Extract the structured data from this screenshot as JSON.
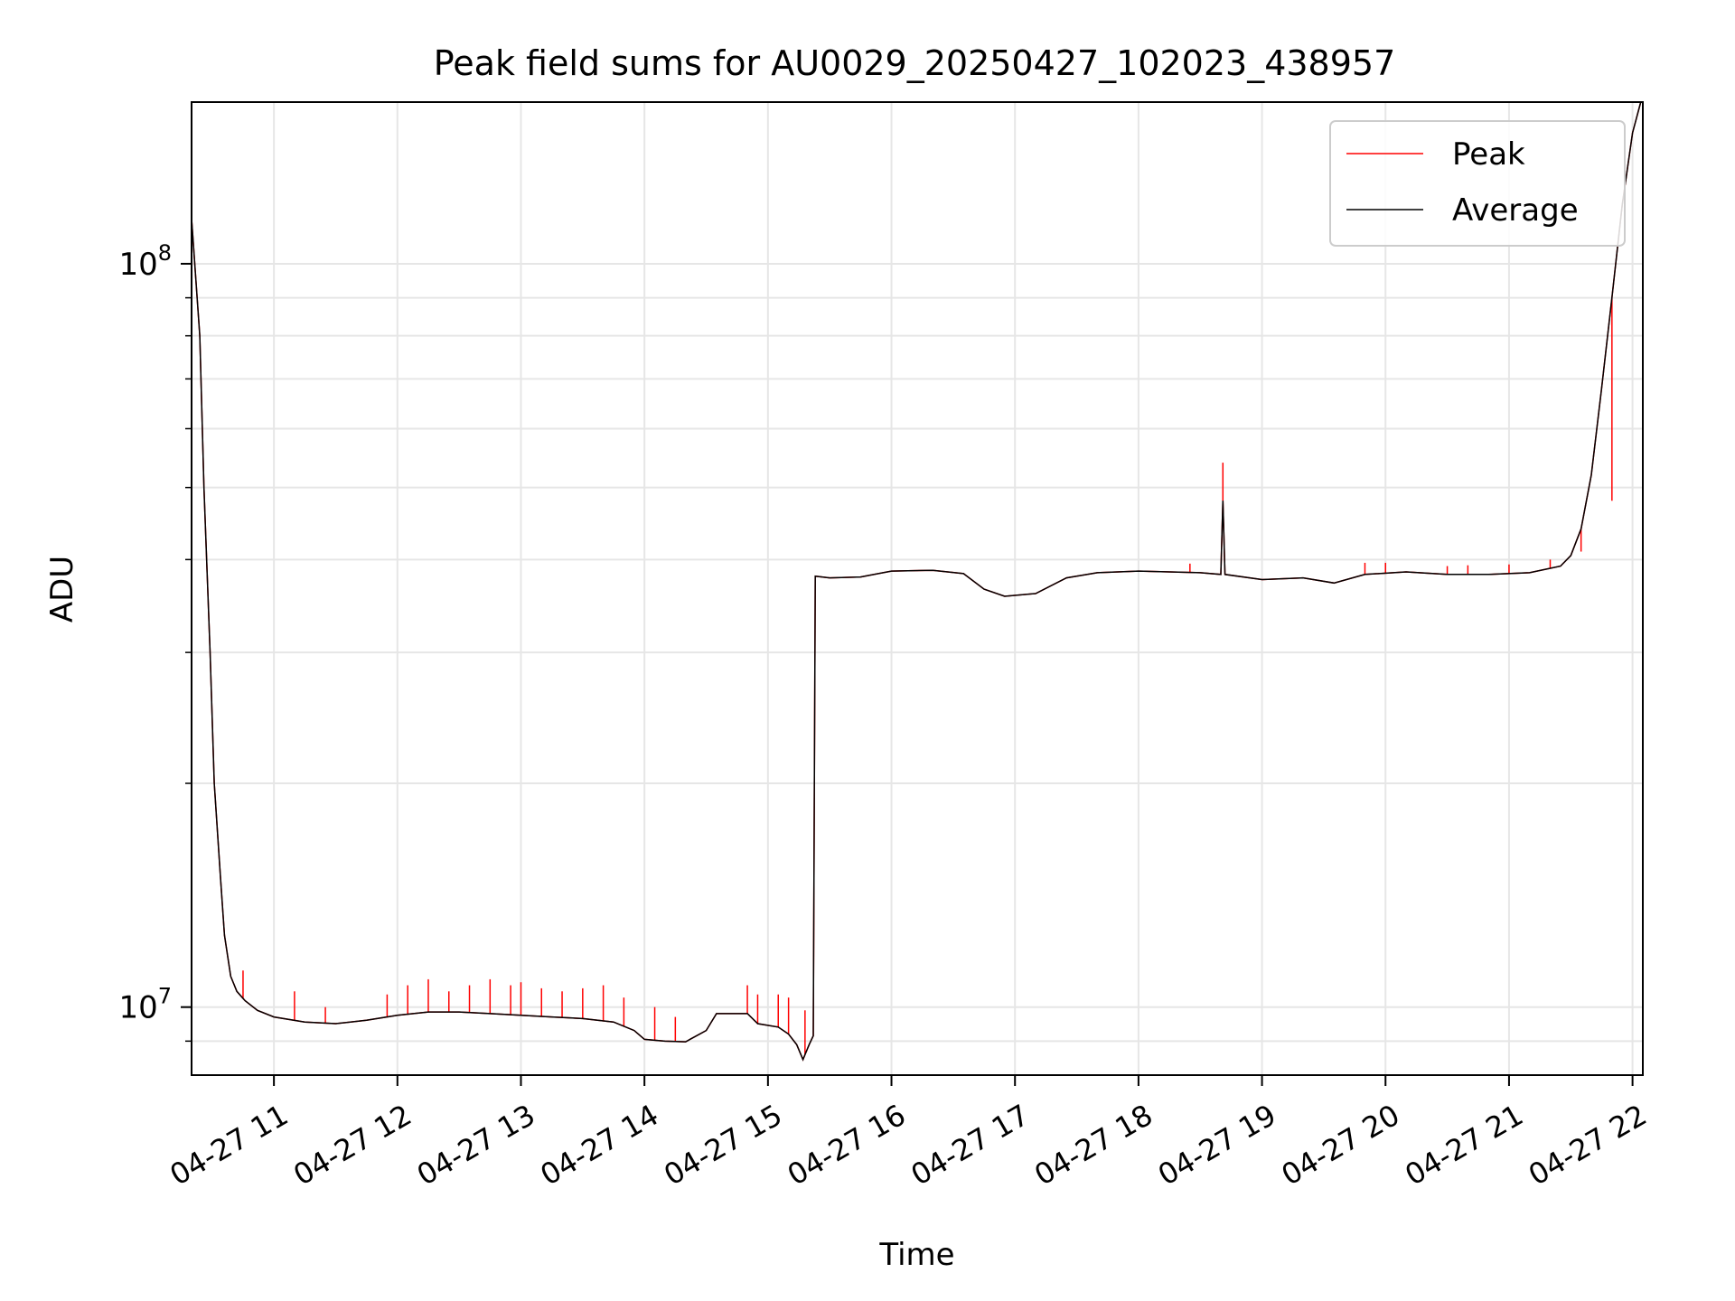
{
  "chart_data": {
    "type": "line",
    "title": "Peak field sums for AU0029_20250427_102023_438957",
    "xlabel": "Time",
    "ylabel": "ADU",
    "y_scale": "log",
    "ylim": [
      8100000,
      165000000
    ],
    "xlim": [
      "2025-04-27 10:20",
      "2025-04-27 22:05"
    ],
    "grid": true,
    "legend_position": "top-right",
    "x_ticks": [
      {
        "t": "2025-04-27 11:00",
        "label": "04-27 11"
      },
      {
        "t": "2025-04-27 12:00",
        "label": "04-27 12"
      },
      {
        "t": "2025-04-27 13:00",
        "label": "04-27 13"
      },
      {
        "t": "2025-04-27 14:00",
        "label": "04-27 14"
      },
      {
        "t": "2025-04-27 15:00",
        "label": "04-27 15"
      },
      {
        "t": "2025-04-27 16:00",
        "label": "04-27 16"
      },
      {
        "t": "2025-04-27 17:00",
        "label": "04-27 17"
      },
      {
        "t": "2025-04-27 18:00",
        "label": "04-27 18"
      },
      {
        "t": "2025-04-27 19:00",
        "label": "04-27 19"
      },
      {
        "t": "2025-04-27 20:00",
        "label": "04-27 20"
      },
      {
        "t": "2025-04-27 21:00",
        "label": "04-27 21"
      },
      {
        "t": "2025-04-27 22:00",
        "label": "04-27 22"
      }
    ],
    "y_ticks": [
      {
        "value": 10000000,
        "label": "10",
        "exp": "7"
      },
      {
        "value": 100000000,
        "label": "10",
        "exp": "8"
      }
    ],
    "series": [
      {
        "name": "Average",
        "color": "#000000",
        "points": [
          [
            "2025-04-27 10:20",
            115000000
          ],
          [
            "2025-04-27 10:21",
            105000000
          ],
          [
            "2025-04-27 10:24",
            80000000
          ],
          [
            "2025-04-27 10:26",
            50000000
          ],
          [
            "2025-04-27 10:29",
            30000000
          ],
          [
            "2025-04-27 10:31",
            20000000
          ],
          [
            "2025-04-27 10:34",
            15000000
          ],
          [
            "2025-04-27 10:36",
            12500000
          ],
          [
            "2025-04-27 10:39",
            11000000
          ],
          [
            "2025-04-27 10:42",
            10500000
          ],
          [
            "2025-04-27 10:46",
            10200000
          ],
          [
            "2025-04-27 10:52",
            9900000
          ],
          [
            "2025-04-27 11:00",
            9700000
          ],
          [
            "2025-04-27 11:15",
            9550000
          ],
          [
            "2025-04-27 11:30",
            9500000
          ],
          [
            "2025-04-27 11:45",
            9600000
          ],
          [
            "2025-04-27 12:00",
            9750000
          ],
          [
            "2025-04-27 12:15",
            9850000
          ],
          [
            "2025-04-27 12:30",
            9850000
          ],
          [
            "2025-04-27 12:45",
            9800000
          ],
          [
            "2025-04-27 13:00",
            9750000
          ],
          [
            "2025-04-27 13:15",
            9700000
          ],
          [
            "2025-04-27 13:30",
            9650000
          ],
          [
            "2025-04-27 13:45",
            9550000
          ],
          [
            "2025-04-27 13:55",
            9300000
          ],
          [
            "2025-04-27 14:00",
            9050000
          ],
          [
            "2025-04-27 14:10",
            9000000
          ],
          [
            "2025-04-27 14:20",
            8980000
          ],
          [
            "2025-04-27 14:30",
            9300000
          ],
          [
            "2025-04-27 14:35",
            9800000
          ],
          [
            "2025-04-27 14:50",
            9800000
          ],
          [
            "2025-04-27 14:55",
            9500000
          ],
          [
            "2025-04-27 15:05",
            9400000
          ],
          [
            "2025-04-27 15:10",
            9200000
          ],
          [
            "2025-04-27 15:14",
            8900000
          ],
          [
            "2025-04-27 15:17",
            8500000
          ],
          [
            "2025-04-27 15:20",
            8900000
          ],
          [
            "2025-04-27 15:22",
            9150000
          ],
          [
            "2025-04-27 15:23",
            38000000
          ],
          [
            "2025-04-27 15:30",
            37800000
          ],
          [
            "2025-04-27 15:45",
            37900000
          ],
          [
            "2025-04-27 16:00",
            38600000
          ],
          [
            "2025-04-27 16:20",
            38700000
          ],
          [
            "2025-04-27 16:35",
            38300000
          ],
          [
            "2025-04-27 16:45",
            36500000
          ],
          [
            "2025-04-27 16:55",
            35700000
          ],
          [
            "2025-04-27 17:10",
            36000000
          ],
          [
            "2025-04-27 17:25",
            37800000
          ],
          [
            "2025-04-27 17:40",
            38400000
          ],
          [
            "2025-04-27 18:00",
            38600000
          ],
          [
            "2025-04-27 18:30",
            38400000
          ],
          [
            "2025-04-27 18:40",
            38200000
          ],
          [
            "2025-04-27 18:41",
            48000000
          ],
          [
            "2025-04-27 18:42",
            38200000
          ],
          [
            "2025-04-27 19:00",
            37600000
          ],
          [
            "2025-04-27 19:20",
            37800000
          ],
          [
            "2025-04-27 19:35",
            37200000
          ],
          [
            "2025-04-27 19:50",
            38200000
          ],
          [
            "2025-04-27 20:10",
            38500000
          ],
          [
            "2025-04-27 20:30",
            38200000
          ],
          [
            "2025-04-27 20:50",
            38200000
          ],
          [
            "2025-04-27 21:10",
            38400000
          ],
          [
            "2025-04-27 21:25",
            39200000
          ],
          [
            "2025-04-27 21:30",
            40500000
          ],
          [
            "2025-04-27 21:35",
            44000000
          ],
          [
            "2025-04-27 21:40",
            52000000
          ],
          [
            "2025-04-27 21:45",
            68000000
          ],
          [
            "2025-04-27 21:50",
            90000000
          ],
          [
            "2025-04-27 21:55",
            120000000
          ],
          [
            "2025-04-27 22:00",
            150000000
          ],
          [
            "2025-04-27 22:04",
            165000000
          ]
        ]
      },
      {
        "name": "Peak",
        "color": "#ff0000",
        "spikes": [
          [
            "2025-04-27 10:20",
            135000000
          ],
          [
            "2025-04-27 10:45",
            11200000
          ],
          [
            "2025-04-27 11:10",
            10500000
          ],
          [
            "2025-04-27 11:25",
            10000000
          ],
          [
            "2025-04-27 11:55",
            10400000
          ],
          [
            "2025-04-27 12:05",
            10700000
          ],
          [
            "2025-04-27 12:15",
            10900000
          ],
          [
            "2025-04-27 12:25",
            10500000
          ],
          [
            "2025-04-27 12:35",
            10700000
          ],
          [
            "2025-04-27 12:45",
            10900000
          ],
          [
            "2025-04-27 12:55",
            10700000
          ],
          [
            "2025-04-27 13:00",
            10800000
          ],
          [
            "2025-04-27 13:10",
            10600000
          ],
          [
            "2025-04-27 13:20",
            10500000
          ],
          [
            "2025-04-27 13:30",
            10600000
          ],
          [
            "2025-04-27 13:40",
            10700000
          ],
          [
            "2025-04-27 13:50",
            10300000
          ],
          [
            "2025-04-27 14:05",
            10000000
          ],
          [
            "2025-04-27 14:15",
            9700000
          ],
          [
            "2025-04-27 14:50",
            10700000
          ],
          [
            "2025-04-27 14:55",
            10400000
          ],
          [
            "2025-04-27 15:05",
            10400000
          ],
          [
            "2025-04-27 15:10",
            10300000
          ],
          [
            "2025-04-27 15:18",
            9900000
          ],
          [
            "2025-04-27 18:25",
            39500000
          ],
          [
            "2025-04-27 18:41",
            54000000
          ],
          [
            "2025-04-27 19:50",
            39600000
          ],
          [
            "2025-04-27 20:00",
            39600000
          ],
          [
            "2025-04-27 20:30",
            39200000
          ],
          [
            "2025-04-27 20:40",
            39300000
          ],
          [
            "2025-04-27 21:00",
            39400000
          ],
          [
            "2025-04-27 21:20",
            40000000
          ],
          [
            "2025-04-27 21:35",
            41000000
          ],
          [
            "2025-04-27 21:50",
            48000000
          ]
        ]
      }
    ]
  }
}
